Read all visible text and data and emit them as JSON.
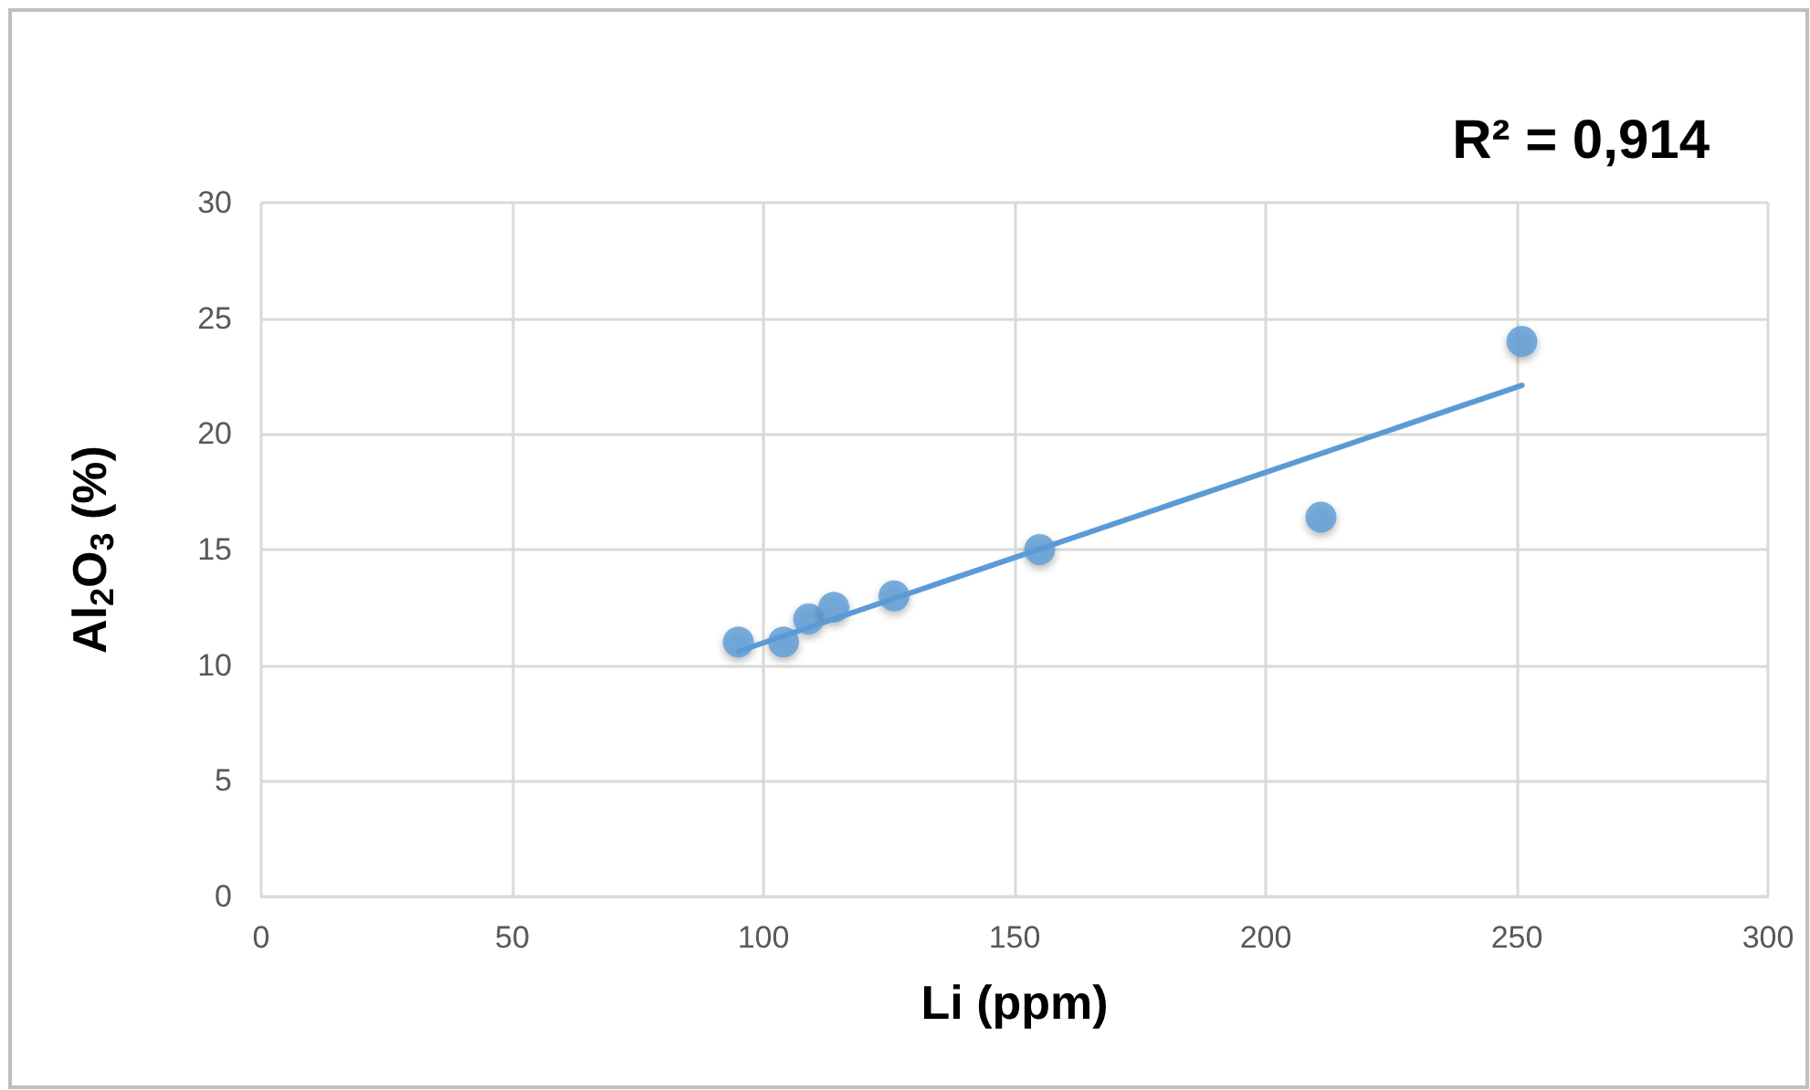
{
  "chart_data": {
    "type": "scatter",
    "xlabel": "Li (ppm)",
    "ylabel": "Al$_{2}$O$_{3}$ (%)",
    "annotations": [
      "R² = 0,914"
    ],
    "xlim": [
      0,
      300
    ],
    "xticks": [
      0,
      50,
      100,
      150,
      200,
      250,
      300
    ],
    "ylim": [
      0,
      30
    ],
    "yticks": [
      0,
      5,
      10,
      15,
      20,
      25,
      30
    ],
    "grid": true,
    "marker": "circle",
    "series": [
      {
        "type": "scatter",
        "color": "#5b9bd5",
        "x": [
          95,
          104,
          109,
          114,
          126,
          155,
          211,
          251
        ],
        "values": [
          11,
          11,
          12,
          12.5,
          13,
          15,
          16.4,
          24
        ]
      },
      {
        "type": "line",
        "color": "#5b9bd5",
        "marker": "none",
        "line_style": "solid",
        "x": [
          95,
          251
        ],
        "values": [
          10.6,
          22.1
        ]
      }
    ]
  }
}
